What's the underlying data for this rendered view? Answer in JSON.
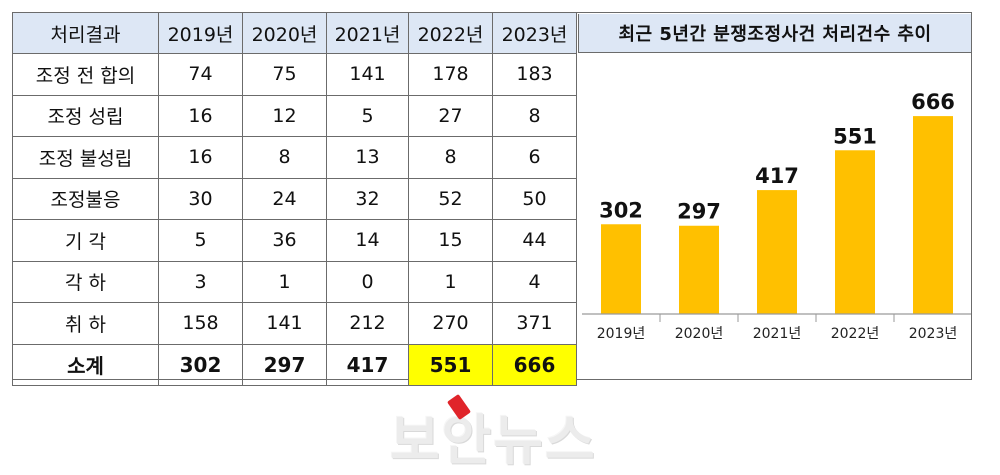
{
  "table": {
    "headers": [
      "처리결과",
      "2019년",
      "2020년",
      "2021년",
      "2022년",
      "2023년"
    ],
    "rows": [
      {
        "label": "조정 전 합의",
        "values": [
          "74",
          "75",
          "141",
          "178",
          "183"
        ]
      },
      {
        "label": "조정 성립",
        "values": [
          "16",
          "12",
          "5",
          "27",
          "8"
        ]
      },
      {
        "label": "조정 불성립",
        "values": [
          "16",
          "8",
          "13",
          "8",
          "6"
        ]
      },
      {
        "label": "조정불응",
        "values": [
          "30",
          "24",
          "32",
          "52",
          "50"
        ]
      },
      {
        "label": "기 각",
        "values": [
          "5",
          "36",
          "14",
          "15",
          "44"
        ]
      },
      {
        "label": "각 하",
        "values": [
          "3",
          "1",
          "0",
          "1",
          "4"
        ]
      },
      {
        "label": "취 하",
        "values": [
          "158",
          "141",
          "212",
          "270",
          "371"
        ]
      }
    ],
    "total": {
      "label": "소계",
      "values": [
        "302",
        "297",
        "417",
        "551",
        "666"
      ]
    },
    "highlight_color": "#ffff00",
    "header_bg": "#dde7f5"
  },
  "chart_data": {
    "type": "bar",
    "title": "최근 5년간 분쟁조정사건 처리건수 추이",
    "categories": [
      "2019년",
      "2020년",
      "2021년",
      "2022년",
      "2023년"
    ],
    "values": [
      302,
      297,
      417,
      551,
      666
    ],
    "ylim": [
      0,
      700
    ],
    "bar_color": "#ffc000",
    "grid": false,
    "data_labels": true
  },
  "watermark": {
    "text": "보안뉴스"
  }
}
